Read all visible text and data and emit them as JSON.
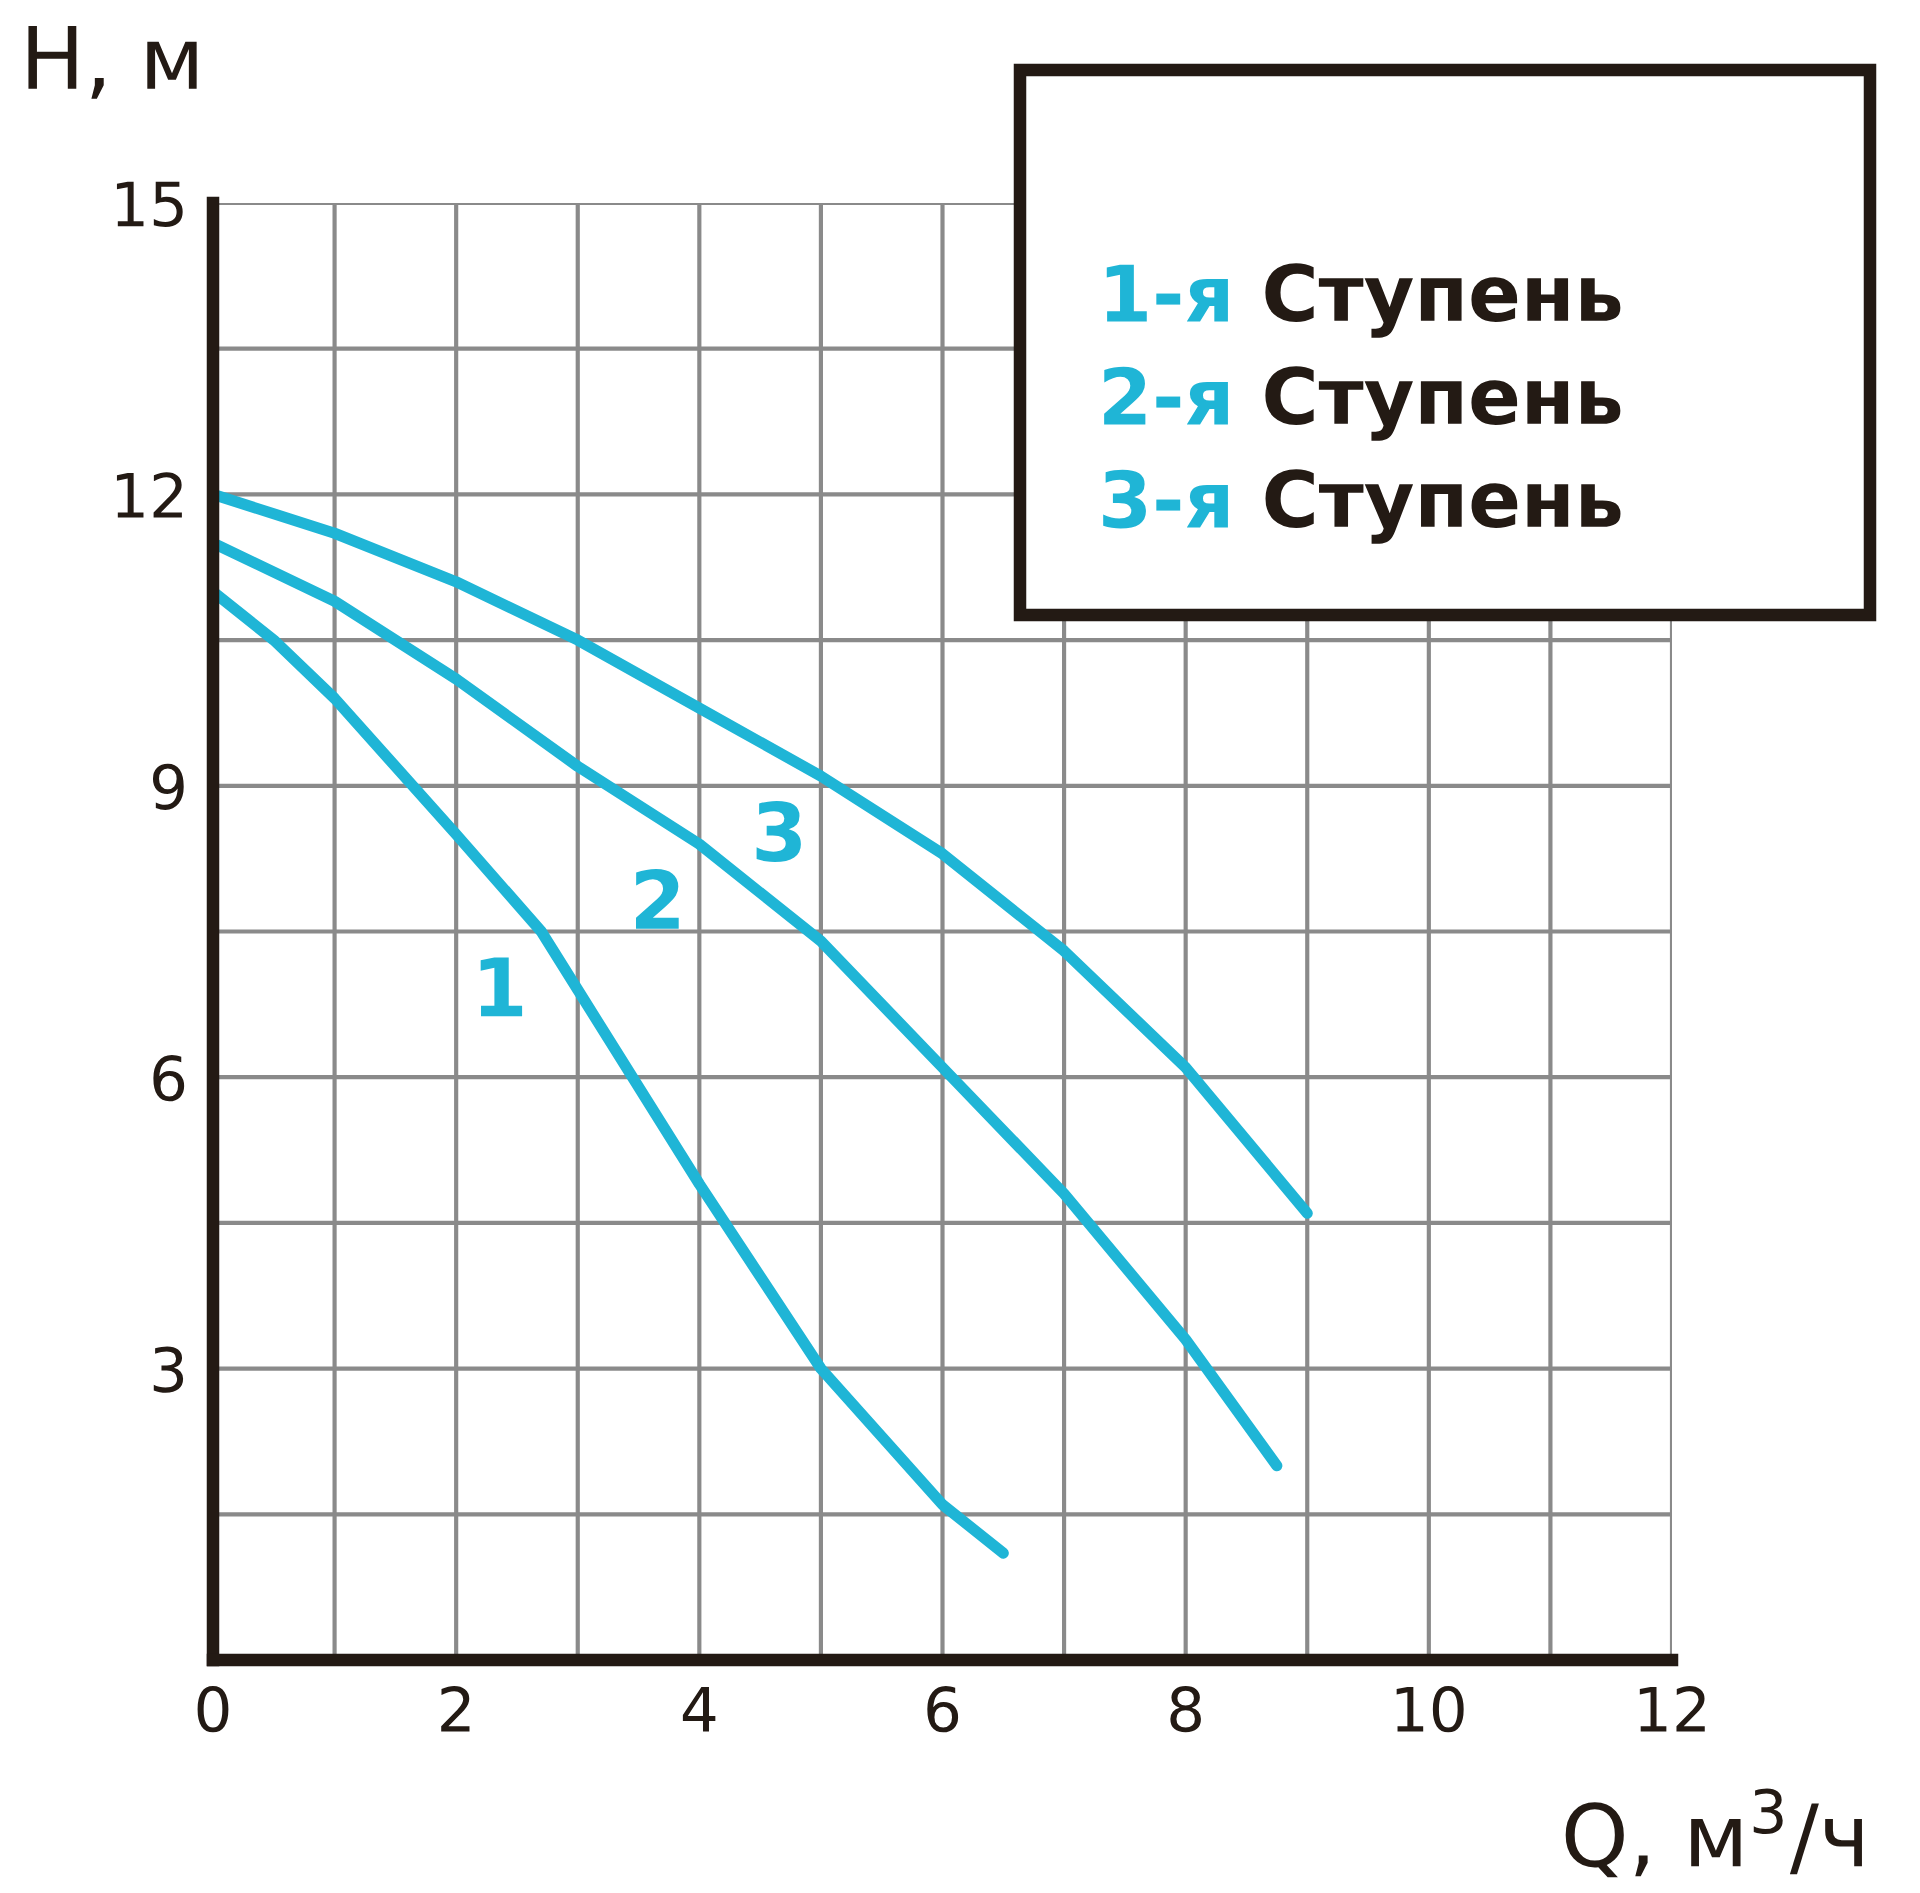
{
  "chart_data": {
    "type": "line",
    "xlabel": "Q, м$^{3}$/ч",
    "ylabel": "H, м",
    "xlim": [
      0,
      12
    ],
    "ylim": [
      0,
      15
    ],
    "xticks": [
      0,
      {
        "value": 1,
        "label": null
      },
      2,
      {
        "value": 3,
        "label": null
      },
      4,
      {
        "value": 5,
        "label": null
      },
      6,
      {
        "value": 7,
        "label": null
      },
      8,
      {
        "value": 9,
        "label": null
      },
      10,
      {
        "value": 11,
        "label": null
      },
      12
    ],
    "yticks": [
      {
        "value": 0,
        "label": null
      },
      {
        "value": 1.5,
        "label": null
      },
      3,
      {
        "value": 4.5,
        "label": null
      },
      6,
      {
        "value": 7.5,
        "label": null
      },
      9,
      {
        "value": 10.5,
        "label": null
      },
      12,
      {
        "value": 13.5,
        "label": null
      },
      15
    ],
    "grid": true,
    "marker": "none",
    "line_style": "solid",
    "series": [
      {
        "name": "1",
        "color": "#1fb5d6",
        "x": [
          0,
          0.5,
          1,
          2,
          2.7,
          3,
          4,
          5,
          6,
          6.5
        ],
        "values": [
          11,
          10.5,
          9.9,
          8.5,
          7.5,
          6.9,
          4.9,
          3.0,
          1.6,
          1.1
        ]
      },
      {
        "name": "2",
        "color": "#1fb5d6",
        "x": [
          0,
          1,
          2,
          3,
          4,
          5,
          6,
          7,
          8,
          8.75
        ],
        "values": [
          11.5,
          10.9,
          10.1,
          9.2,
          8.4,
          7.4,
          6.1,
          4.8,
          3.3,
          2.0
        ]
      },
      {
        "name": "3",
        "color": "#1fb5d6",
        "x": [
          0,
          1,
          2,
          3,
          4,
          5,
          6,
          7,
          8,
          9
        ],
        "values": [
          12,
          11.6,
          11.1,
          10.5,
          9.8,
          9.1,
          8.3,
          7.3,
          6.1,
          4.6
        ]
      }
    ],
    "annotations": [
      "1-я Ступень",
      "2-я Ступень",
      "3-я Ступень"
    ]
  }
}
